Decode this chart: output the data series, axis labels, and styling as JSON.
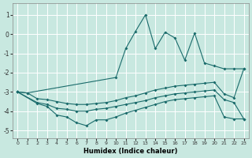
{
  "xlabel": "Humidex (Indice chaleur)",
  "background_color": "#c8e8e0",
  "grid_color": "#b8d8d0",
  "line_color": "#1a6b6b",
  "xlim": [
    -0.5,
    23.5
  ],
  "ylim": [
    -5.4,
    1.6
  ],
  "yticks": [
    1,
    0,
    -1,
    -2,
    -3,
    -4,
    -5
  ],
  "xticks": [
    0,
    1,
    2,
    3,
    4,
    5,
    6,
    7,
    8,
    9,
    10,
    11,
    12,
    13,
    14,
    15,
    16,
    17,
    18,
    19,
    20,
    21,
    22,
    23
  ],
  "lines": [
    {
      "x": [
        0,
        1,
        10,
        11,
        12,
        13,
        14,
        15,
        16,
        17,
        18,
        19,
        20,
        21,
        22,
        23
      ],
      "y": [
        -3.0,
        -3.05,
        -2.25,
        -0.75,
        0.15,
        1.0,
        -0.75,
        0.1,
        -0.2,
        -1.35,
        0.05,
        -1.5,
        -1.65,
        -1.8,
        -1.8,
        -1.8
      ]
    },
    {
      "x": [
        0,
        1,
        2,
        3,
        4,
        5,
        6,
        7,
        8,
        9,
        10,
        11,
        12,
        13,
        14,
        15,
        16,
        17,
        18,
        19,
        20,
        21,
        22,
        23
      ],
      "y": [
        -3.0,
        -3.05,
        -3.35,
        -3.4,
        -3.5,
        -3.6,
        -3.65,
        -3.65,
        -3.6,
        -3.55,
        -3.45,
        -3.3,
        -3.2,
        -3.05,
        -2.9,
        -2.8,
        -2.7,
        -2.65,
        -2.6,
        -2.55,
        -2.5,
        -3.1,
        -3.3,
        -1.8
      ]
    },
    {
      "x": [
        0,
        2,
        3,
        4,
        5,
        6,
        7,
        8,
        9,
        10,
        11,
        12,
        13,
        14,
        15,
        16,
        17,
        18,
        19,
        20,
        21,
        22,
        23
      ],
      "y": [
        -3.0,
        -3.55,
        -3.65,
        -3.85,
        -3.9,
        -4.0,
        -4.0,
        -3.9,
        -3.85,
        -3.75,
        -3.65,
        -3.55,
        -3.45,
        -3.3,
        -3.2,
        -3.1,
        -3.05,
        -3.0,
        -2.95,
        -2.9,
        -3.4,
        -3.55,
        -4.4
      ]
    },
    {
      "x": [
        0,
        2,
        3,
        4,
        5,
        6,
        7,
        8,
        9,
        10,
        11,
        12,
        13,
        14,
        15,
        16,
        17,
        18,
        19,
        20,
        21,
        22,
        23
      ],
      "y": [
        -3.0,
        -3.6,
        -3.75,
        -4.2,
        -4.3,
        -4.6,
        -4.75,
        -4.45,
        -4.45,
        -4.3,
        -4.1,
        -3.95,
        -3.8,
        -3.65,
        -3.5,
        -3.4,
        -3.35,
        -3.3,
        -3.25,
        -3.2,
        -4.3,
        -4.4,
        -4.4
      ]
    }
  ]
}
